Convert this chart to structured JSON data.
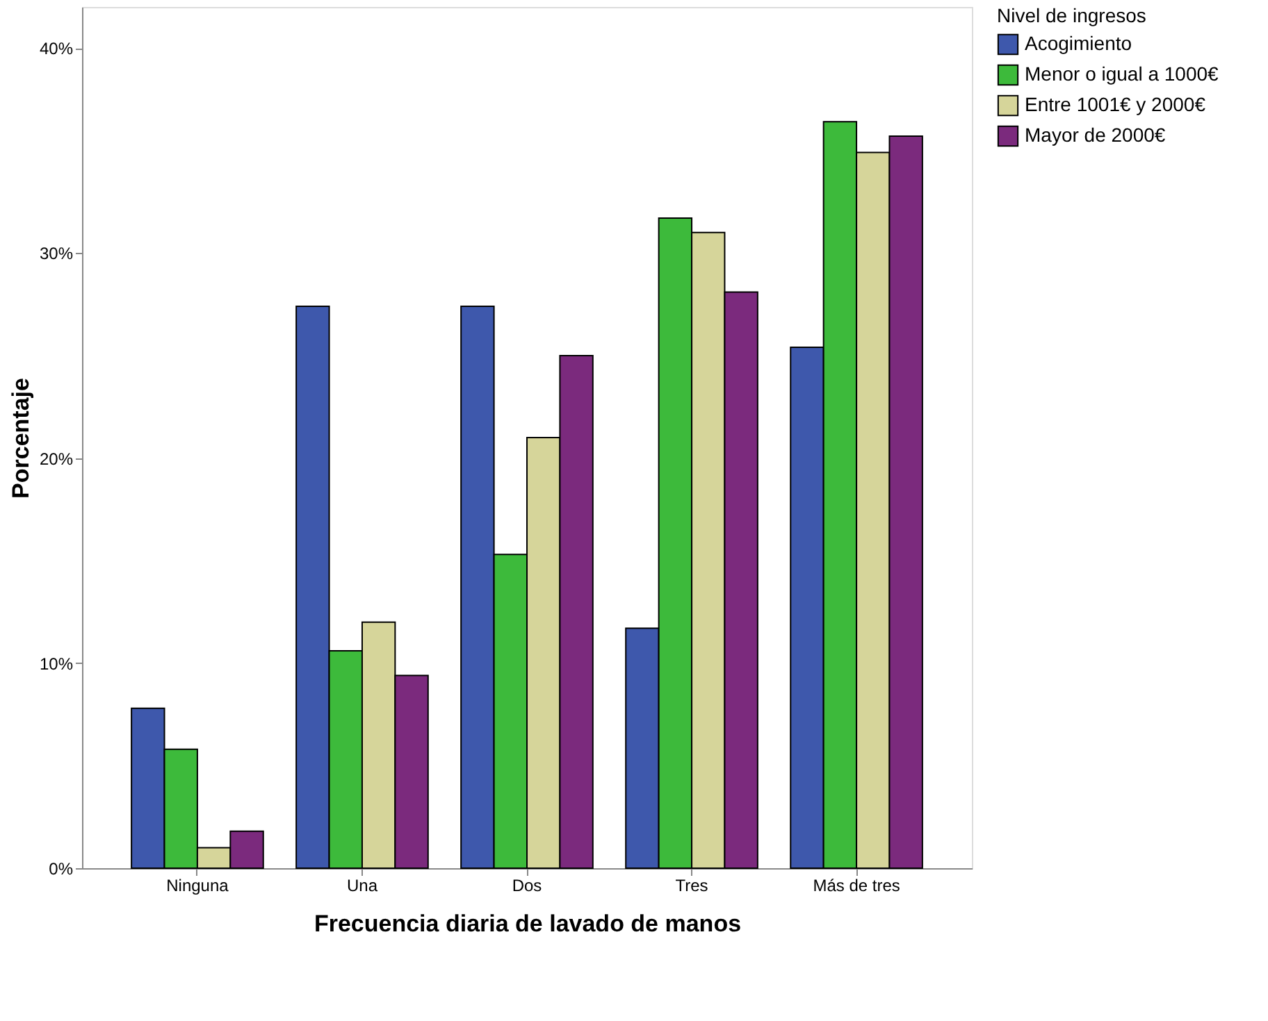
{
  "chart_data": {
    "type": "bar",
    "xlabel": "Frecuencia diaria de lavado de manos",
    "ylabel": "Porcentaje",
    "legend_title": "Nivel de ingresos",
    "legend": "right",
    "categories": [
      "Ninguna",
      "Una",
      "Dos",
      "Tres",
      "Más de tres"
    ],
    "series": [
      {
        "name": "Acogimiento",
        "color": "#3e58ac",
        "values": [
          7.8,
          27.4,
          27.4,
          11.7,
          25.4
        ]
      },
      {
        "name": "Menor o igual a 1000€",
        "color": "#3dba3b",
        "values": [
          5.8,
          10.6,
          15.3,
          31.7,
          36.4
        ]
      },
      {
        "name": "Entre 1001€ y 2000€",
        "color": "#d6d59a",
        "values": [
          1.0,
          12.0,
          21.0,
          31.0,
          34.9
        ]
      },
      {
        "name": "Mayor de 2000€",
        "color": "#7b2a7d",
        "values": [
          1.8,
          9.4,
          25.0,
          28.1,
          35.7
        ]
      }
    ],
    "ylim": [
      0,
      42
    ],
    "yticks": [
      {
        "value": 0,
        "label": "0%"
      },
      {
        "value": 10,
        "label": "10%"
      },
      {
        "value": 20,
        "label": "20%"
      },
      {
        "value": 30,
        "label": "30%"
      },
      {
        "value": 40,
        "label": "40%"
      }
    ],
    "grid": false
  }
}
